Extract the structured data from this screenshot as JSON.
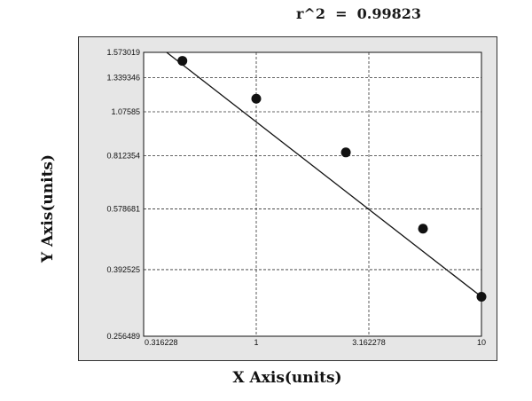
{
  "header": {
    "r2_text": "r^2  =  0.99823"
  },
  "chart_data": {
    "type": "scatter",
    "title": "",
    "xlabel": "X Axis(units)",
    "ylabel": "Y Axis(units)",
    "x_scale": "log",
    "y_scale": "log",
    "xlim": [
      0.316228,
      10
    ],
    "ylim": [
      0.256489,
      1.573019
    ],
    "x_ticks": [
      0.316228,
      1,
      3.162278,
      10
    ],
    "x_tick_labels": [
      "0.316228",
      "1",
      "3.162278",
      "10"
    ],
    "y_ticks": [
      0.256489,
      0.392525,
      0.578681,
      0.812354,
      1.07585,
      1.339346,
      1.573019
    ],
    "y_tick_labels": [
      "0.256489",
      "0.392525",
      "0.578681",
      "0.812354",
      "1.07585",
      "1.339346",
      "1.573019"
    ],
    "grid": true,
    "series": [
      {
        "x": [
          0.47,
          1.0,
          2.5,
          5.5,
          10.0
        ],
        "y": [
          1.49,
          1.17,
          0.83,
          0.51,
          0.33
        ],
        "color": "#111111"
      }
    ],
    "fit_line": {
      "x": [
        0.4,
        10.0
      ],
      "y": [
        1.573019,
        0.33
      ],
      "color": "#111111"
    },
    "r_squared": 0.99823
  }
}
